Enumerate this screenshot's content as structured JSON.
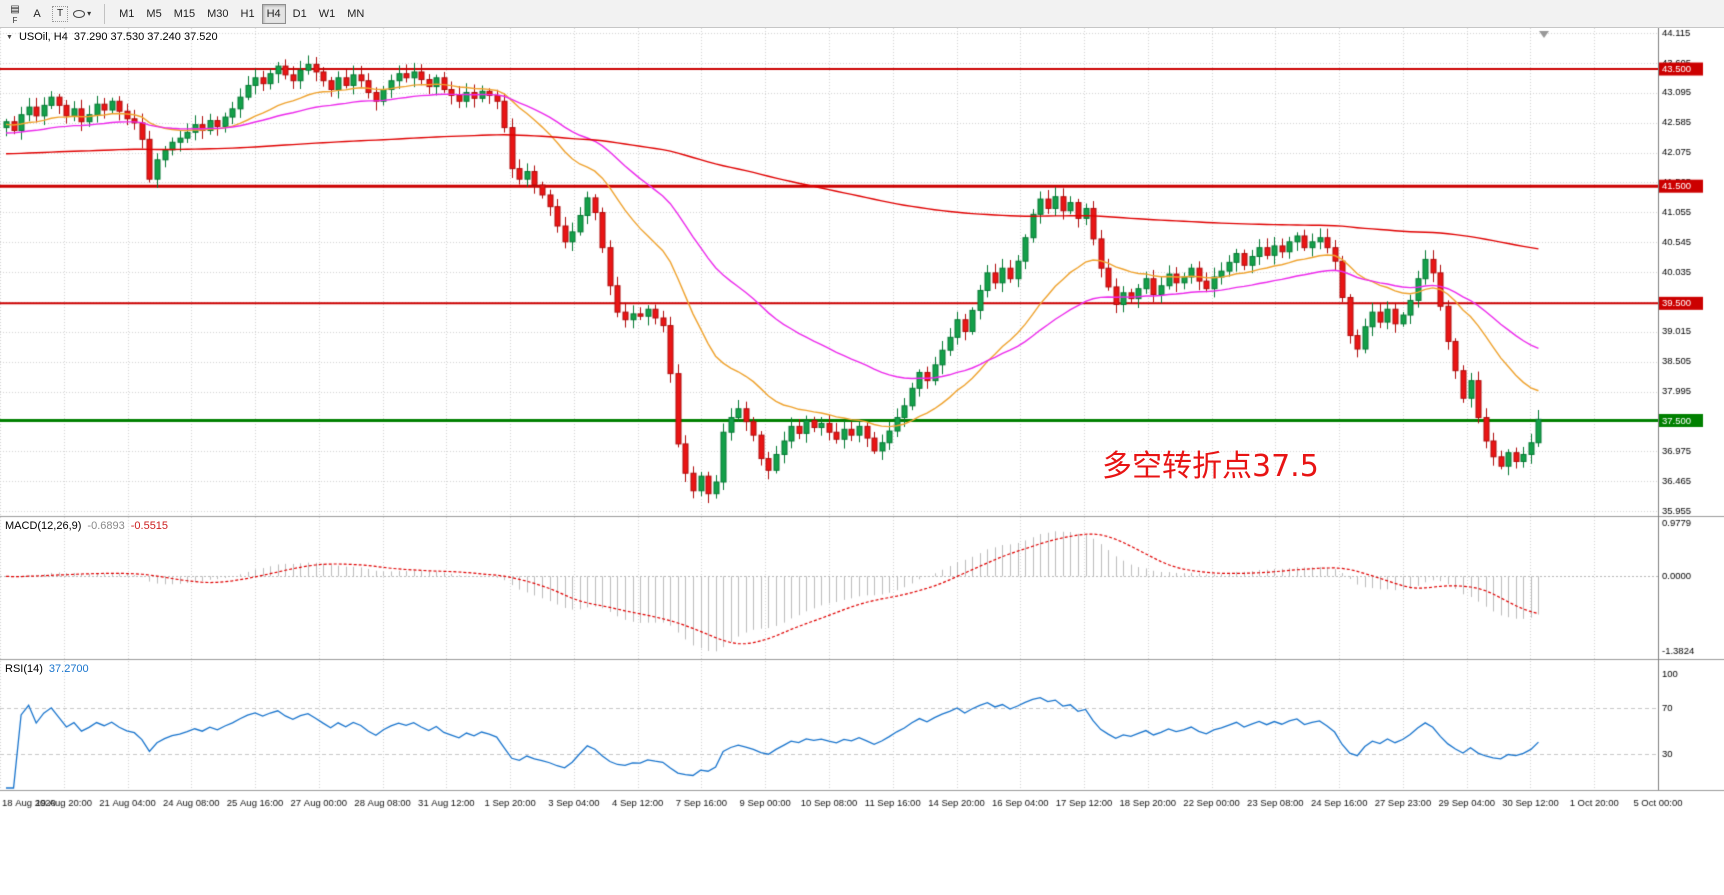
{
  "toolbar": {
    "buttons": [
      {
        "name": "windows-layout",
        "glyph": "▤"
      },
      {
        "name": "text-annotation",
        "label": "A"
      },
      {
        "name": "text-box",
        "label": "T"
      },
      {
        "name": "shapes",
        "caret": "▾"
      }
    ],
    "f_label": "F",
    "timeframes": [
      {
        "label": "M1",
        "active": false
      },
      {
        "label": "M5",
        "active": false
      },
      {
        "label": "M15",
        "active": false
      },
      {
        "label": "M30",
        "active": false
      },
      {
        "label": "H1",
        "active": false
      },
      {
        "label": "H4",
        "active": true
      },
      {
        "label": "D1",
        "active": false
      },
      {
        "label": "W1",
        "active": false
      },
      {
        "label": "MN",
        "active": false
      }
    ]
  },
  "time_axis": {
    "labels": [
      "18 Aug 2020",
      "19 Aug 20:00",
      "21 Aug 04:00",
      "24 Aug 08:00",
      "25 Aug 16:00",
      "27 Aug 00:00",
      "28 Aug 08:00",
      "31 Aug 12:00",
      "1 Sep 20:00",
      "3 Sep 04:00",
      "4 Sep 12:00",
      "7 Sep 16:00",
      "9 Sep 00:00",
      "10 Sep 08:00",
      "11 Sep 16:00",
      "14 Sep 20:00",
      "16 Sep 04:00",
      "17 Sep 12:00",
      "18 Sep 20:00",
      "22 Sep 00:00",
      "23 Sep 08:00",
      "24 Sep 16:00",
      "27 Sep 23:00",
      "29 Sep 04:00",
      "30 Sep 12:00",
      "1 Oct 20:00",
      "5 Oct 00:00"
    ]
  },
  "chart_data": [
    {
      "type": "candlestick",
      "corner_marker": "▼",
      "title": "USOil, H4",
      "ohlc_display": "37.290 37.530 37.240 37.520",
      "first_open": 42.5,
      "closes": [
        42.6,
        42.45,
        42.72,
        42.85,
        42.7,
        42.88,
        43.02,
        42.88,
        42.7,
        42.82,
        42.6,
        42.72,
        42.9,
        42.8,
        42.95,
        42.78,
        42.65,
        42.58,
        42.3,
        41.62,
        41.95,
        42.12,
        42.25,
        42.32,
        42.42,
        42.55,
        42.45,
        42.62,
        42.52,
        42.68,
        42.82,
        43.02,
        43.22,
        43.35,
        43.25,
        43.42,
        43.55,
        43.4,
        43.3,
        43.48,
        43.58,
        43.45,
        43.3,
        43.15,
        43.35,
        43.22,
        43.4,
        43.3,
        43.1,
        42.95,
        43.15,
        43.3,
        43.42,
        43.35,
        43.45,
        43.32,
        43.2,
        43.35,
        43.15,
        43.05,
        42.95,
        43.1,
        43.0,
        43.12,
        43.05,
        42.95,
        42.5,
        41.8,
        41.62,
        41.75,
        41.52,
        41.35,
        41.15,
        40.82,
        40.55,
        40.72,
        41.0,
        41.3,
        41.05,
        40.45,
        39.8,
        39.35,
        39.22,
        39.32,
        39.28,
        39.4,
        39.25,
        39.12,
        38.3,
        37.1,
        36.6,
        36.3,
        36.55,
        36.25,
        36.45,
        37.3,
        37.55,
        37.7,
        37.48,
        37.25,
        36.85,
        36.65,
        36.92,
        37.15,
        37.4,
        37.28,
        37.5,
        37.38,
        37.45,
        37.3,
        37.18,
        37.35,
        37.25,
        37.4,
        37.2,
        36.98,
        37.12,
        37.32,
        37.55,
        37.75,
        38.05,
        38.32,
        38.18,
        38.45,
        38.7,
        38.92,
        39.22,
        39.02,
        39.38,
        39.72,
        40.02,
        39.85,
        40.1,
        39.92,
        40.22,
        40.62,
        41.02,
        41.28,
        41.12,
        41.32,
        41.08,
        41.22,
        40.95,
        41.12,
        40.6,
        40.1,
        39.78,
        39.48,
        39.68,
        39.58,
        39.75,
        39.92,
        39.65,
        39.8,
        40.0,
        39.85,
        39.95,
        40.1,
        39.88,
        39.75,
        39.95,
        40.05,
        40.2,
        40.35,
        40.15,
        40.3,
        40.45,
        40.32,
        40.48,
        40.38,
        40.55,
        40.65,
        40.45,
        40.55,
        40.62,
        40.45,
        40.22,
        39.6,
        38.95,
        38.72,
        39.1,
        39.35,
        39.18,
        39.4,
        39.15,
        39.3,
        39.55,
        39.92,
        40.25,
        40.02,
        39.45,
        38.85,
        38.35,
        37.88,
        38.18,
        37.55,
        37.15,
        36.88,
        36.72,
        36.95,
        36.8,
        36.92,
        37.12,
        37.52
      ],
      "price_axis": {
        "min": 35.955,
        "max": 44.115,
        "step": 0.51,
        "decimals": 3
      },
      "levels": [
        {
          "value": 43.5,
          "label": "43.500",
          "color": "#cc0000",
          "width": 2
        },
        {
          "value": 41.5,
          "label": "41.500",
          "color": "#cc0000",
          "width": 3
        },
        {
          "value": 39.5,
          "label": "39.500",
          "color": "#cc0000",
          "width": 2
        },
        {
          "value": 37.5,
          "label": "37.500",
          "color": "#008000",
          "width": 3
        }
      ],
      "moving_averages": [
        {
          "name": "fast-ma",
          "period": 21,
          "seed": 42.55,
          "color": "#efa32f"
        },
        {
          "name": "medium-ma",
          "period": 45,
          "seed": 42.4,
          "color": "#ec2aec"
        },
        {
          "name": "slow-ma",
          "period": 300,
          "seed": 42.05,
          "color": "#e00000"
        }
      ],
      "colors": {
        "up": "#14a04a",
        "up_border": "#067a34",
        "down": "#ea1515",
        "down_border": "#b00d0d",
        "grid": "#d4d4d4"
      },
      "annotation": {
        "text": "多空转折点37.5",
        "color": "#e81414"
      }
    },
    {
      "type": "macd",
      "label": "MACD(12,26,9)",
      "values": [
        "-0.6893",
        "-0.5515"
      ],
      "params": {
        "fast": 12,
        "slow": 26,
        "signal": 9
      },
      "ylim": [
        -1.45,
        1.02
      ],
      "y_ticks": [
        0.9779,
        0.0,
        -1.3824
      ],
      "y_tick_labels": [
        "0.9779",
        "0.0000",
        "-1.3824"
      ],
      "histogram_color": "#bdbdbd",
      "signal_color": "#e00000"
    },
    {
      "type": "rsi",
      "label": "RSI(14)",
      "value": "37.2700",
      "period": 14,
      "levels": [
        70,
        30
      ],
      "ylim": [
        0,
        110
      ],
      "y_ticks": [
        100,
        70,
        30
      ],
      "y_tick_labels": [
        "100",
        "70",
        "30"
      ],
      "line_color": "#1874cd",
      "level_color": "#c8c8c8"
    }
  ]
}
